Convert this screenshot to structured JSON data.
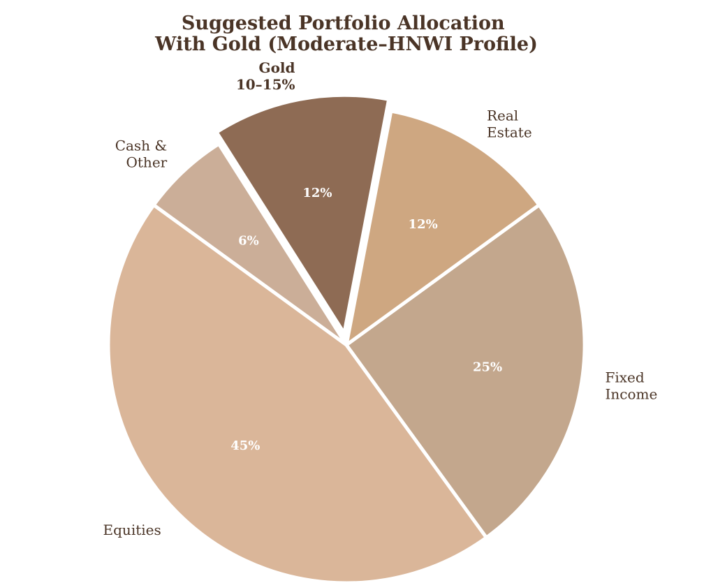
{
  "chart_data": {
    "type": "pie",
    "title": [
      "Suggested Portfolio Allocation",
      "With Gold (Moderate–HNWI Profile)"
    ],
    "slices": [
      {
        "category": [
          "Equities"
        ],
        "value": 45,
        "value_label": "45%",
        "color": "#DAB699",
        "exploded": false,
        "label_bold": false
      },
      {
        "category": [
          "Fixed",
          "Income"
        ],
        "value": 25,
        "value_label": "25%",
        "color": "#C3A78D",
        "exploded": false,
        "label_bold": false
      },
      {
        "category": [
          "Real",
          "Estate"
        ],
        "value": 12,
        "value_label": "12%",
        "color": "#CEA781",
        "exploded": false,
        "label_bold": false
      },
      {
        "category": [
          "Gold",
          "10–15%"
        ],
        "value": 12,
        "value_label": "12%",
        "color": "#8E6B54",
        "exploded": true,
        "label_bold": true
      },
      {
        "category": [
          "Cash &",
          "Other"
        ],
        "value": 6,
        "value_label": "6%",
        "color": "#CBAE98",
        "exploded": false,
        "label_bold": false
      }
    ],
    "start_angle_deg": 144,
    "direction": "counterclockwise",
    "text_color": "#4A3426",
    "value_label_color": "#FFFFFF",
    "edge_color": "#FFFFFF",
    "legend": "none"
  }
}
